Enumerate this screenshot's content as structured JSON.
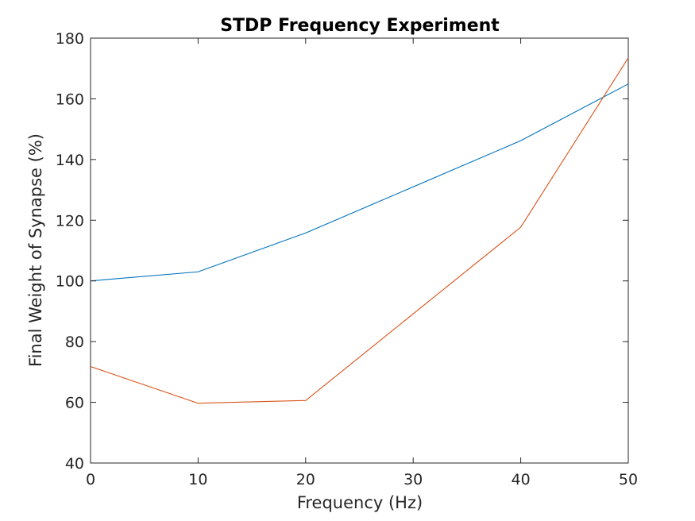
{
  "chart_data": {
    "type": "line",
    "title": "STDP Frequency Experiment",
    "xlabel": "Frequency (Hz)",
    "ylabel": "Final Weight of Synapse (%)",
    "xlim": [
      0,
      50
    ],
    "ylim": [
      40,
      180
    ],
    "xticks": [
      0,
      10,
      20,
      30,
      40,
      50
    ],
    "yticks": [
      40,
      60,
      80,
      100,
      120,
      140,
      160,
      180
    ],
    "grid": false,
    "legend": "none",
    "x": [
      0,
      10,
      20,
      40,
      50
    ],
    "series": [
      {
        "color": "#0072BD",
        "values": [
          100,
          103,
          115.8,
          146.2,
          164.9
        ]
      },
      {
        "color": "#D95319",
        "values": [
          71.8,
          59.7,
          60.6,
          117.7,
          173.5
        ]
      }
    ]
  }
}
